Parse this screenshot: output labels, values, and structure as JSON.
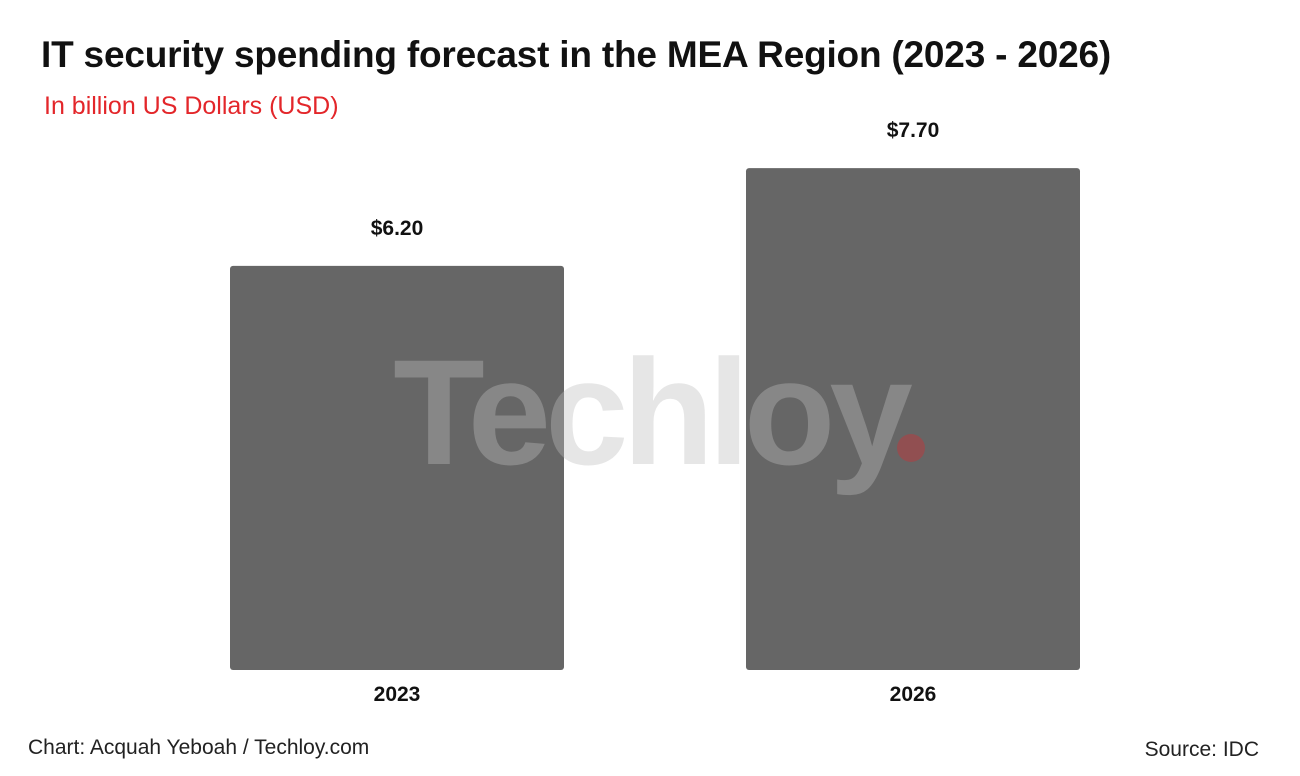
{
  "chart_data": {
    "type": "bar",
    "title": "IT security spending forecast in the MEA Region (2023 - 2026)",
    "subtitle": "In billion US Dollars (USD)",
    "categories": [
      "2023",
      "2026"
    ],
    "values": [
      6.2,
      7.7
    ],
    "value_labels": [
      "$6.20",
      "$7.70"
    ],
    "xlabel": "",
    "ylabel": "",
    "ylim": [
      0,
      8.7
    ],
    "grid": false,
    "bar_color": "#666666"
  },
  "subtitle_color": "#e3262a",
  "watermark": {
    "text": "Techloy",
    "dot_color": "#e3262a"
  },
  "footer": {
    "credit": "Chart: Acquah Yeboah / Techloy.com",
    "source": "Source: IDC"
  }
}
